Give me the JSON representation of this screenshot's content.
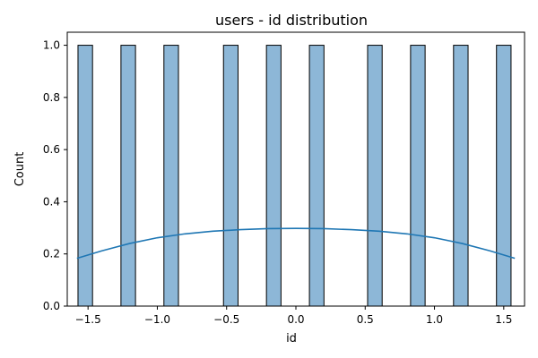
{
  "chart_data": {
    "type": "bar",
    "title": "users - id distribution",
    "xlabel": "id",
    "ylabel": "Count",
    "xlim": [
      -1.65,
      1.65
    ],
    "ylim": [
      0,
      1.05
    ],
    "xticks": [
      -1.5,
      -1.0,
      -0.5,
      0.0,
      0.5,
      1.0,
      1.5
    ],
    "xtick_labels": [
      "−1.5",
      "−1.0",
      "−0.5",
      "0.0",
      "0.5",
      "1.0",
      "1.5"
    ],
    "yticks": [
      0.0,
      0.2,
      0.4,
      0.6,
      0.8,
      1.0
    ],
    "ytick_labels": [
      "0.0",
      "0.2",
      "0.4",
      "0.6",
      "0.8",
      "1.0"
    ],
    "bars": [
      {
        "x": -1.52,
        "value": 1
      },
      {
        "x": -1.21,
        "value": 1
      },
      {
        "x": -0.9,
        "value": 1
      },
      {
        "x": -0.47,
        "value": 1
      },
      {
        "x": -0.16,
        "value": 1
      },
      {
        "x": 0.15,
        "value": 1
      },
      {
        "x": 0.57,
        "value": 1
      },
      {
        "x": 0.88,
        "value": 1
      },
      {
        "x": 1.19,
        "value": 1
      },
      {
        "x": 1.5,
        "value": 1
      }
    ],
    "bar_width": 0.105,
    "kde": {
      "x": [
        -1.58,
        -1.4,
        -1.2,
        -1.0,
        -0.8,
        -0.6,
        -0.4,
        -0.2,
        0.0,
        0.2,
        0.4,
        0.6,
        0.8,
        1.0,
        1.2,
        1.4,
        1.58
      ],
      "y": [
        0.183,
        0.212,
        0.24,
        0.262,
        0.277,
        0.287,
        0.293,
        0.297,
        0.298,
        0.297,
        0.293,
        0.287,
        0.277,
        0.262,
        0.24,
        0.212,
        0.183
      ]
    },
    "colors": {
      "bar_fill": "#8db7d7",
      "bar_edge": "#000000",
      "kde_line": "#1f77b4"
    },
    "grid": false,
    "legend": "none"
  }
}
